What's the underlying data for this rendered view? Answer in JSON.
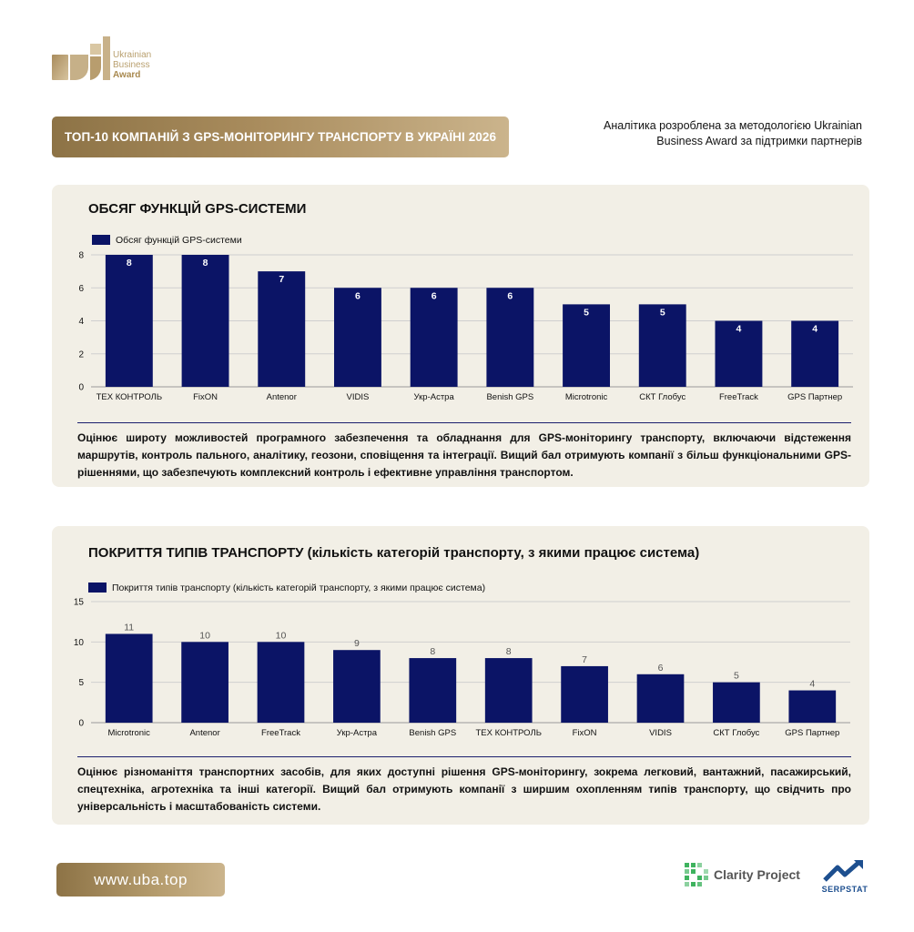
{
  "logo": {
    "line1": "Ukrainian",
    "line2": "Business",
    "line3": "Award"
  },
  "title": "ТОП-10 КОМПАНІЙ З GPS-МОНІТОРИНГУ ТРАНСПОРТУ В УКРАЇНІ 2026",
  "top_note": "Аналітика розроблена за методологією Ukrainian Business Award за підтримки партнерів",
  "chart1": {
    "heading": "ОБСЯГ ФУНКЦІЙ GPS-СИСТЕМИ",
    "description": "Оцінює широту можливостей програмного забезпечення та обладнання для GPS-моніторингу транспорту, включаючи відстеження маршрутів, контроль пального, аналітику, геозони, сповіщення та інтеграції. Вищий бал отримують компанії з більш функціональними GPS-рішеннями, що забезпечують комплексний контроль і ефективне управління транспортом."
  },
  "chart2": {
    "heading": "ПОКРИТТЯ ТИПІВ ТРАНСПОРТУ (кількість категорій транспорту, з якими працює система)",
    "description": "Оцінює різноманіття транспортних засобів, для яких доступні рішення GPS-моніторингу, зокрема легковий, вантажний, пасажирський, спецтехніка, агротехніка та інші категорії. Вищий бал отримують компанії з ширшим охопленням типів транспорту, що свідчить про універсальність і масштабованість системи."
  },
  "chart_data": [
    {
      "type": "bar",
      "title": "ОБСЯГ ФУНКЦІЙ GPS-СИСТЕМИ",
      "categories": [
        "ТЕХ КОНТРОЛЬ",
        "FixON",
        "Antenor",
        "VIDIS",
        "Укр-Астра",
        "Benish GPS",
        "Microtronic",
        "СКТ Глобус",
        "FreeTrack",
        "GPS Партнер"
      ],
      "series": [
        {
          "name": "Обсяг функцій GPS-системи",
          "values": [
            8,
            8,
            7,
            6,
            6,
            6,
            5,
            5,
            4,
            4
          ]
        }
      ],
      "ylim": [
        0,
        8
      ],
      "yticks": [
        0,
        2,
        4,
        6,
        8
      ],
      "label_position": "inside",
      "legend": "top-left",
      "grid": true,
      "color": "#0b1466"
    },
    {
      "type": "bar",
      "title": "ПОКРИТТЯ ТИПІВ ТРАНСПОРТУ (кількість категорій транспорту, з якими працює система)",
      "categories": [
        "Microtronic",
        "Antenor",
        "FreeTrack",
        "Укр-Астра",
        "Benish GPS",
        "ТЕХ КОНТРОЛЬ",
        "FixON",
        "VIDIS",
        "СКТ Глобус",
        "GPS Партнер"
      ],
      "series": [
        {
          "name": "Покриття типів транспорту (кількість категорій транспорту, з якими працює система)",
          "values": [
            11,
            10,
            10,
            9,
            8,
            8,
            7,
            6,
            5,
            4
          ]
        }
      ],
      "ylim": [
        0,
        15
      ],
      "yticks": [
        0,
        5,
        10,
        15
      ],
      "label_position": "above",
      "legend": "top-left",
      "grid": true,
      "color": "#0b1466"
    }
  ],
  "footer": {
    "url": "www.uba.top",
    "partner1": "Clarity Project",
    "partner2": "SERPSTAT"
  }
}
